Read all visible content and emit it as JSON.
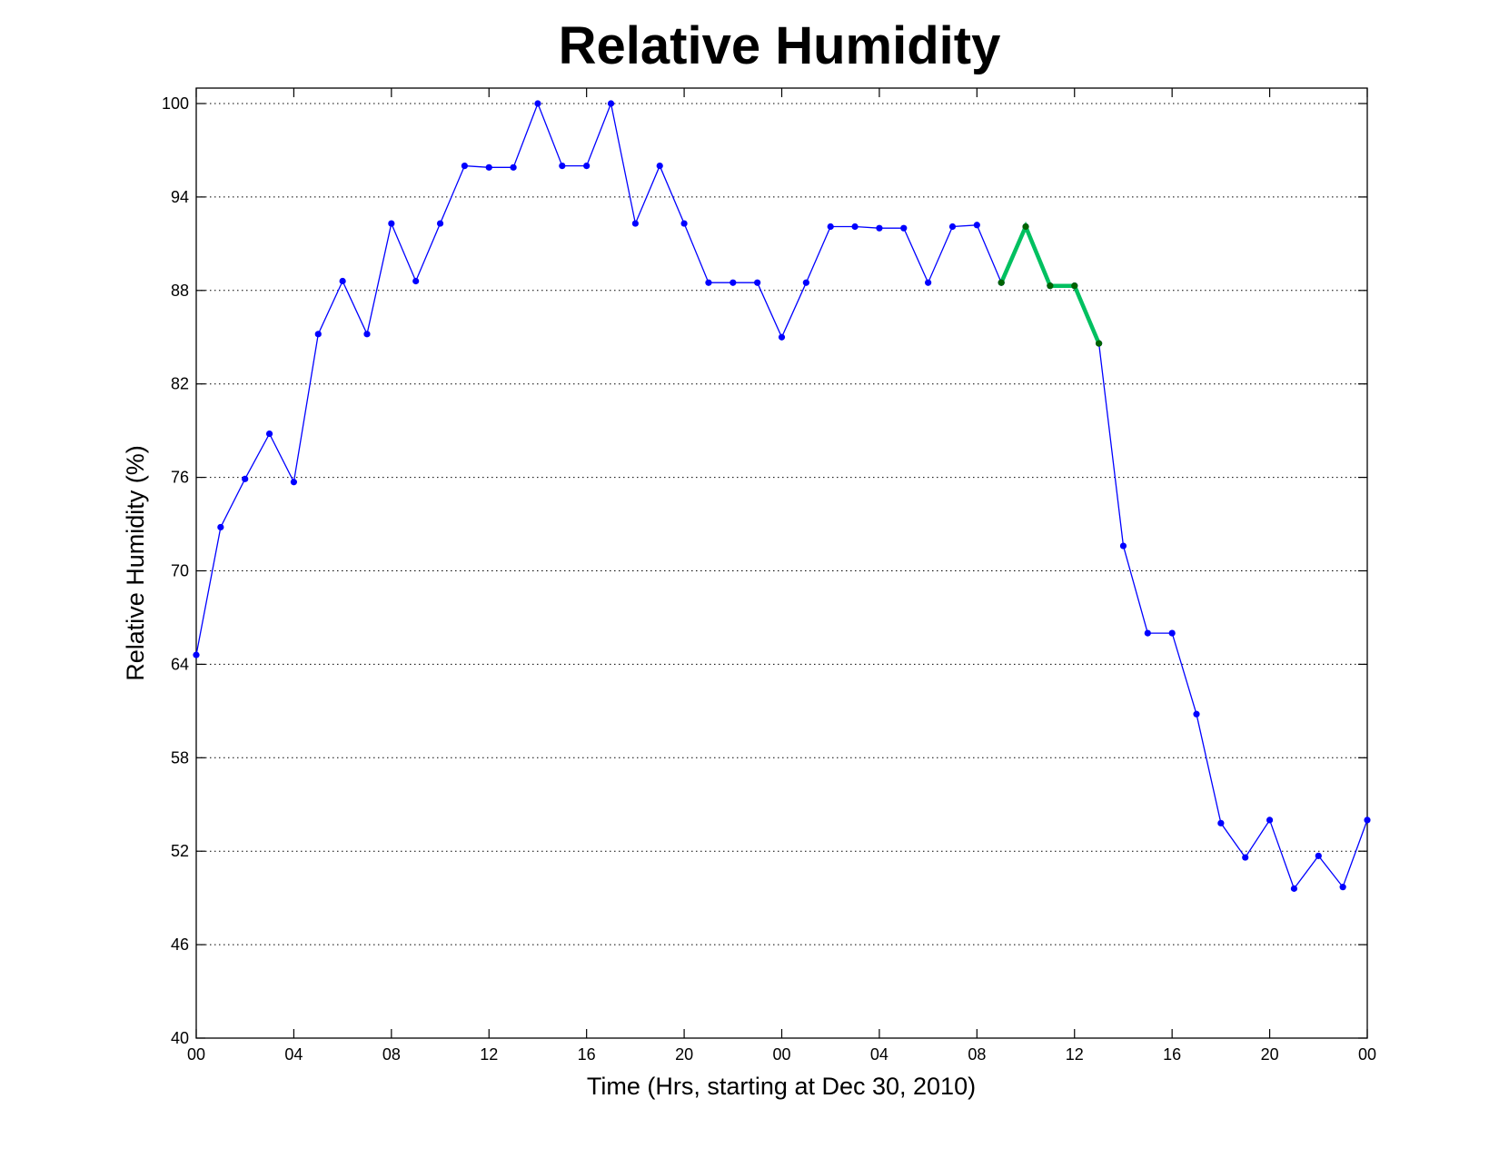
{
  "chart_data": {
    "type": "line",
    "title": "Relative Humidity",
    "xlabel": "Time (Hrs, starting at Dec 30, 2010)",
    "ylabel": "Relative Humidity (%)",
    "ylim": [
      40,
      100
    ],
    "xlim": [
      0,
      48
    ],
    "x_ticks": [
      0,
      4,
      8,
      12,
      16,
      20,
      24,
      28,
      32,
      36,
      40,
      44,
      48
    ],
    "x_tick_labels": [
      "00",
      "04",
      "08",
      "12",
      "16",
      "20",
      "00",
      "04",
      "08",
      "12",
      "16",
      "20",
      "00"
    ],
    "y_ticks": [
      40,
      46,
      52,
      58,
      64,
      70,
      76,
      82,
      88,
      94,
      100
    ],
    "y_tick_labels": [
      "40",
      "46",
      "52",
      "58",
      "64",
      "70",
      "76",
      "82",
      "88",
      "94",
      "100"
    ],
    "grid": "horizontal dotted",
    "series": [
      {
        "color": "#0000ff",
        "x": [
          0,
          1,
          2,
          3,
          4,
          5,
          6,
          7,
          8,
          9,
          10,
          11,
          12,
          13,
          14,
          15,
          16,
          17,
          18,
          19,
          20,
          21,
          22,
          23,
          24,
          25,
          26,
          27,
          28,
          29,
          30,
          31,
          32,
          33,
          34,
          35,
          36,
          37,
          38,
          39,
          40,
          41,
          42,
          43,
          44,
          45,
          46,
          47,
          48
        ],
        "values": [
          64.6,
          72.8,
          75.9,
          78.8,
          75.7,
          85.2,
          88.6,
          85.2,
          92.3,
          88.6,
          92.3,
          96.0,
          95.9,
          95.9,
          100,
          96.0,
          96.0,
          100,
          92.3,
          96.0,
          92.3,
          88.5,
          88.5,
          88.5,
          85.0,
          88.5,
          92.1,
          92.1,
          92.0,
          92.0,
          88.5,
          92.1,
          92.2,
          88.5,
          92.1,
          88.3,
          88.3,
          84.6,
          71.6,
          66.0,
          66.0,
          60.8,
          53.8,
          51.6,
          54.0,
          49.6,
          51.7,
          49.7,
          54.0
        ]
      },
      {
        "color": "#00c060",
        "x": [
          33,
          34,
          35,
          36,
          37
        ],
        "values": [
          88.5,
          92.1,
          88.3,
          88.3,
          84.6
        ]
      }
    ]
  }
}
